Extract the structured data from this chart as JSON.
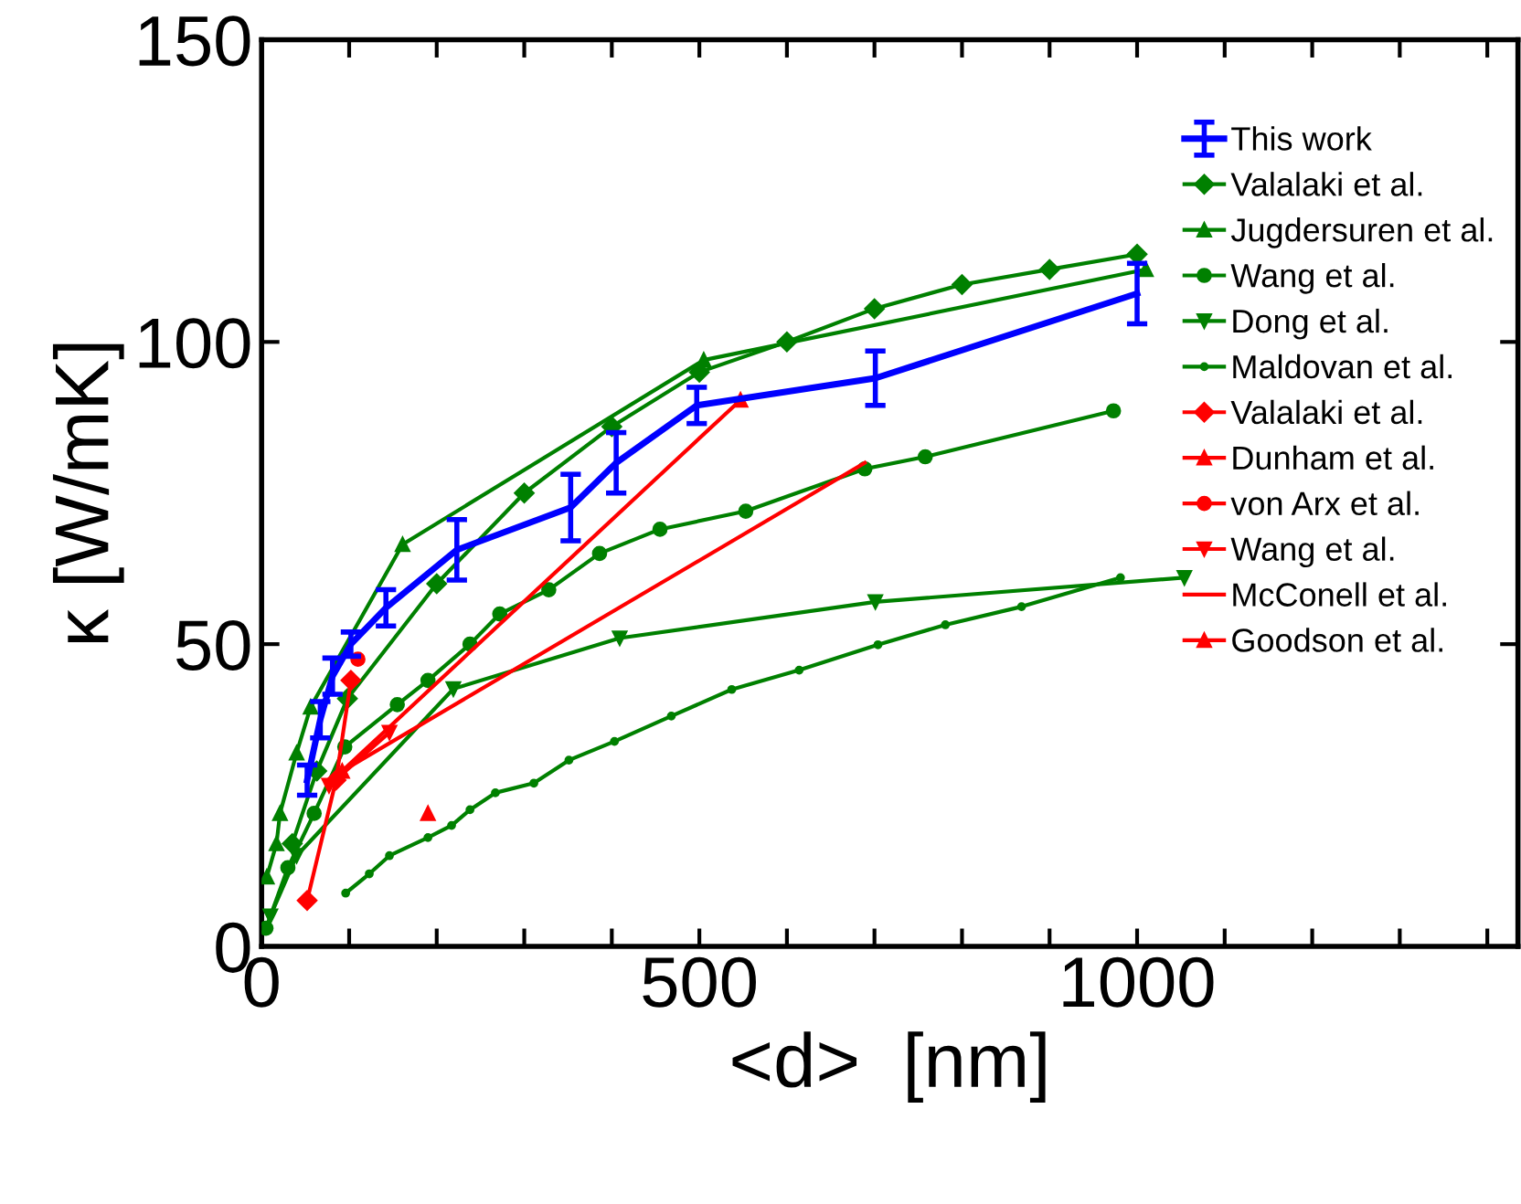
{
  "chart_data": {
    "type": "line",
    "xlabel": "<d>  [nm]",
    "ylabel": "κ [W/mK]",
    "xlim": [
      0,
      1435
    ],
    "ylim": [
      0,
      150
    ],
    "xticks": [
      0,
      {
        "value": 100,
        "label": null
      },
      {
        "value": 200,
        "label": null
      },
      {
        "value": 300,
        "label": null
      },
      {
        "value": 400,
        "label": null
      },
      500,
      {
        "value": 600,
        "label": null
      },
      {
        "value": 700,
        "label": null
      },
      {
        "value": 800,
        "label": null
      },
      {
        "value": 900,
        "label": null
      },
      1000,
      {
        "value": 1100,
        "label": null
      },
      {
        "value": 1200,
        "label": null
      },
      {
        "value": 1300,
        "label": null
      },
      {
        "value": 1400,
        "label": null
      }
    ],
    "yticks": [
      0,
      50,
      100,
      150
    ],
    "grid": false,
    "legend": "top right",
    "series": [
      {
        "name": "This work",
        "color": "#0000ff",
        "marker": "none",
        "x": [
          52,
          67,
          81,
          102,
          142,
          223,
          353,
          405,
          497,
          701,
          1000
        ],
        "values": [
          27.5,
          37.5,
          44.7,
          50,
          56,
          65.6,
          72.6,
          80,
          89.5,
          94,
          108
        ],
        "errors": [
          2.5,
          3,
          3,
          2,
          3,
          5,
          5.5,
          5,
          3,
          4.5,
          5
        ]
      },
      {
        "name": "Valalaki et al.",
        "color": "#008000",
        "marker": "diamond",
        "x": [
          35,
          63,
          98,
          200,
          300,
          400,
          500,
          600,
          700,
          800,
          900,
          1000
        ],
        "values": [
          17,
          29,
          41,
          60,
          75,
          86,
          95,
          100,
          105.5,
          109.5,
          112,
          114.5
        ]
      },
      {
        "name": "Jugdersuren et al.",
        "color": "#008000",
        "marker": "triangle",
        "x": [
          6,
          17,
          21,
          40,
          56,
          161,
          505,
          1010
        ],
        "values": [
          11.5,
          17,
          22,
          32,
          39.6,
          66.5,
          97,
          112
        ]
      },
      {
        "name": "Wang et al.",
        "color": "#008000",
        "marker": "circle",
        "x": [
          5,
          30,
          60,
          95,
          155,
          190,
          238,
          272,
          328,
          386,
          455,
          553,
          689,
          758,
          973
        ],
        "values": [
          3,
          13,
          22,
          33,
          40,
          44,
          50,
          55,
          59,
          65,
          69,
          72,
          79,
          81,
          88.6
        ]
      },
      {
        "name": "Dong et al.",
        "color": "#008000",
        "marker": "triangle_down",
        "x": [
          10,
          40,
          219,
          409,
          701,
          1054
        ],
        "values": [
          5,
          15,
          42.6,
          51,
          57,
          61
        ]
      },
      {
        "name": "Maldovan et al.",
        "color": "#008000",
        "marker": "point",
        "x": [
          96,
          123,
          146,
          190,
          217,
          238,
          267,
          311,
          351,
          403,
          468,
          537,
          614,
          704,
          781,
          868,
          981
        ],
        "values": [
          8.8,
          12,
          15,
          18,
          20,
          22.6,
          25.4,
          27,
          30.8,
          33.9,
          38.1,
          42.5,
          45.7,
          49.9,
          53.2,
          56.2,
          61
        ]
      },
      {
        "name": "Valalaki et al.",
        "color": "#ff0000",
        "marker": "diamond",
        "x": [
          52,
          85,
          102
        ],
        "values": [
          7.6,
          27.5,
          44
        ]
      },
      {
        "name": "Dunham et al.",
        "color": "#ff0000",
        "marker": "triangle",
        "x": [
          92,
          547
        ],
        "values": [
          29,
          90.4
        ]
      },
      {
        "name": "von Arx et al.",
        "color": "#ff0000",
        "marker": "circle",
        "x": [
          110
        ],
        "values": [
          47.5
        ]
      },
      {
        "name": "Wang et al.",
        "color": "#ff0000",
        "marker": "triangle_down",
        "x": [
          77,
          146
        ],
        "values": [
          26.6,
          35.4
        ]
      },
      {
        "name": "McConell et al.",
        "color": "#ff0000",
        "marker": "none",
        "x": [
          92,
          689
        ],
        "values": [
          29,
          80
        ]
      },
      {
        "name": "Goodson et al.",
        "color": "#ff0000",
        "marker": "triangle",
        "x": [
          190
        ],
        "values": [
          22
        ]
      }
    ]
  }
}
